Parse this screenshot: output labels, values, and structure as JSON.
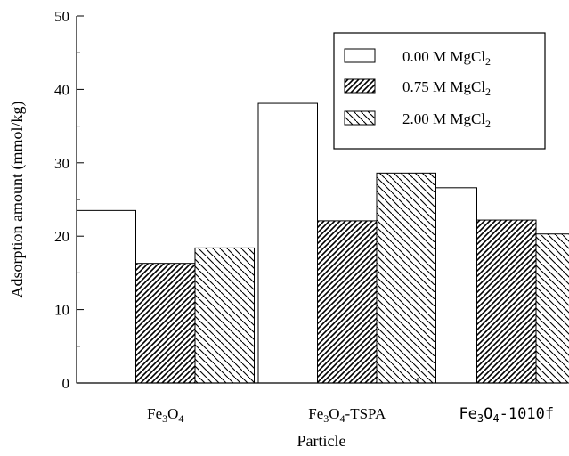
{
  "chart_data": {
    "type": "bar",
    "title": "",
    "xlabel": "Particle",
    "ylabel": "Adsorption amount (mmol/kg)",
    "ylim": [
      0,
      50
    ],
    "yticks": [
      0,
      10,
      20,
      30,
      40,
      50
    ],
    "categories": [
      {
        "base": "Fe",
        "sub1": "3",
        "mid": "O",
        "sub2": "4",
        "suffix": ""
      },
      {
        "base": "Fe",
        "sub1": "3",
        "mid": "O",
        "sub2": "4",
        "suffix": "-TSPA"
      },
      {
        "base": "Fe",
        "sub1": "3",
        "mid": "O",
        "sub2": "4",
        "suffix": "-1010f"
      }
    ],
    "series": [
      {
        "name_main": "0.00 M MgCl",
        "name_sub": "2",
        "pattern": "none",
        "values": [
          23.5,
          38.1,
          26.6
        ]
      },
      {
        "name_main": "0.75 M MgCl",
        "name_sub": "2",
        "pattern": "dense-hatch",
        "values": [
          16.3,
          22.1,
          22.2
        ]
      },
      {
        "name_main": "2.00 M MgCl",
        "name_sub": "2",
        "pattern": "sparse-backhatch",
        "values": [
          18.4,
          28.6,
          20.3
        ]
      }
    ],
    "grid": false,
    "legend_position": "top-right",
    "colors": {
      "bar_fill": "#ffffff",
      "stroke": "#000000"
    }
  }
}
